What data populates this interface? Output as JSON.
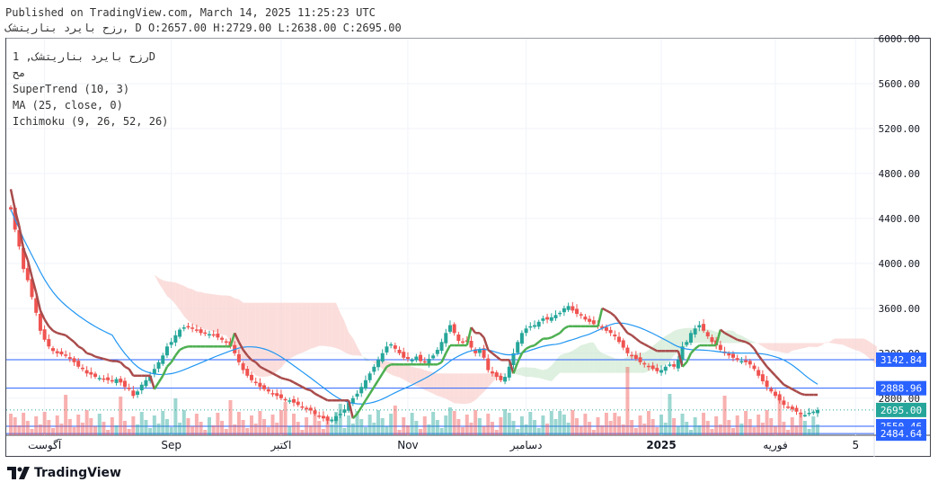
{
  "header": {
    "published": "Published on TradingView.com, March 14, 2025 11:25:23 UTC",
    "ohlc_line": "رزح بایرد بناریتشک, D O:2657.00 H:2729.00 L:2638.00 C:2695.00"
  },
  "legend": {
    "symbol_line": "رزح بایرد بناریتشک, 1D",
    "sub_line": "مح",
    "supertrend": "SuperTrend (10, 3)",
    "ma": "MA (25, close, 0)",
    "ichimoku": "Ichimoku (9, 26, 52, 26)"
  },
  "footer": {
    "brand": "TradingView",
    "brand_icon": "tradingview-logo-icon"
  },
  "colors": {
    "up": "#26a69a",
    "down": "#ef5350",
    "supertrend_up": "#4caf50",
    "supertrend_down": "#a94b4b",
    "ma": "#2196f3",
    "cloud_bear": "#f8c8c4",
    "cloud_bull": "#c8e6c9",
    "hline": "#2962ff"
  },
  "chart_data": {
    "type": "candlestick",
    "y_axis": {
      "ticks": [
        6000,
        5600,
        5200,
        4800,
        4400,
        4000,
        3600,
        3200,
        2800
      ],
      "tick_labels": [
        "6000.00",
        "5600.00",
        "5200.00",
        "4800.00",
        "4400.00",
        "4000.00",
        "3600.00",
        "3200.00",
        "2800.00"
      ],
      "ylim": [
        2470,
        6000
      ],
      "position": "right"
    },
    "x_axis": {
      "labels": [
        "آگوست",
        "Sep",
        "اکتبر",
        "Nov",
        "دسامبر",
        "2025",
        "فوریه",
        "5"
      ],
      "label_index": [
        8,
        38,
        64,
        94,
        122,
        154,
        181,
        200
      ]
    },
    "horizontal_lines": [
      {
        "value": 3142.84,
        "label": "3142.84"
      },
      {
        "value": 2888.96,
        "label": "2888.96"
      },
      {
        "value": 2550.46,
        "label": "2550.46"
      },
      {
        "value": 2484.64,
        "label": "2484.64"
      }
    ],
    "last_price": {
      "value": 2695.0,
      "label": "2695.00"
    },
    "hidden_tick": "2800.00",
    "candles_close": [
      4480,
      4300,
      4150,
      3950,
      3850,
      3700,
      3560,
      3400,
      3320,
      3260,
      3220,
      3200,
      3190,
      3180,
      3150,
      3120,
      3080,
      3060,
      3020,
      3010,
      2990,
      2980,
      2970,
      2960,
      2950,
      2970,
      2940,
      2900,
      2880,
      2820,
      2860,
      2920,
      2960,
      3000,
      3060,
      3120,
      3180,
      3260,
      3300,
      3360,
      3410,
      3430,
      3440,
      3420,
      3400,
      3380,
      3380,
      3370,
      3360,
      3340,
      3320,
      3300,
      3260,
      3200,
      3120,
      3050,
      3000,
      2960,
      2940,
      2900,
      2880,
      2860,
      2840,
      2820,
      2800,
      2790,
      2780,
      2760,
      2740,
      2720,
      2700,
      2690,
      2660,
      2640,
      2620,
      2600,
      2610,
      2640,
      2660,
      2700,
      2760,
      2800,
      2840,
      2900,
      2960,
      3020,
      3080,
      3140,
      3200,
      3260,
      3280,
      3240,
      3200,
      3160,
      3150,
      3140,
      3170,
      3130,
      3120,
      3150,
      3180,
      3230,
      3300,
      3380,
      3450,
      3380,
      3310,
      3300,
      3310,
      3250,
      3200,
      3230,
      3160,
      3050,
      3020,
      2990,
      2960,
      2990,
      3080,
      3200,
      3300,
      3380,
      3420,
      3440,
      3450,
      3480,
      3510,
      3500,
      3520,
      3540,
      3560,
      3600,
      3620,
      3580,
      3550,
      3540,
      3500,
      3480,
      3460,
      3450,
      3420,
      3400,
      3380,
      3350,
      3300,
      3250,
      3200,
      3180,
      3150,
      3120,
      3100,
      3080,
      3060,
      3040,
      3050,
      3080,
      3100,
      3080,
      3140,
      3260,
      3300,
      3380,
      3420,
      3450,
      3400,
      3350,
      3300,
      3270,
      3230,
      3200,
      3180,
      3160,
      3140,
      3130,
      3120,
      3100,
      3060,
      3000,
      2950,
      2900,
      2860,
      2820,
      2780,
      2740,
      2720,
      2700,
      2680,
      2660,
      2650,
      2670,
      2680,
      2695
    ],
    "volume_scale": "relative"
  }
}
